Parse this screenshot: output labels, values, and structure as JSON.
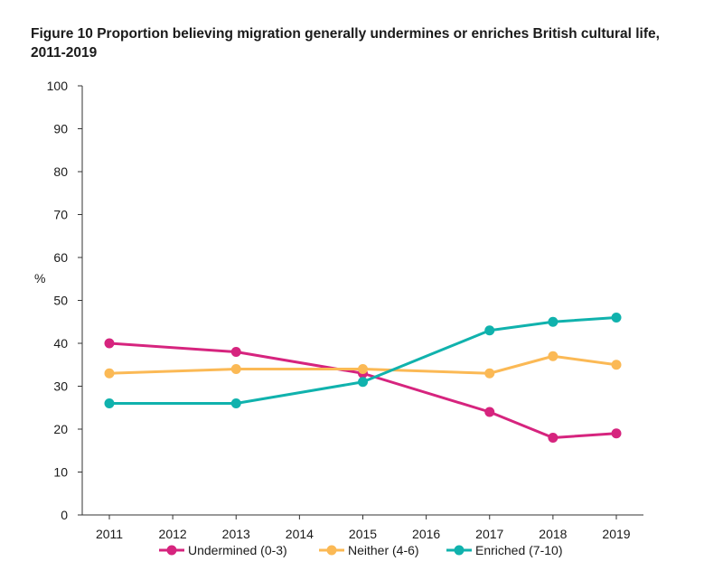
{
  "title": "Figure 10 Proportion believing migration generally undermines or enriches British cultural life, 2011-2019",
  "chart_data": {
    "type": "line",
    "title": "Figure 10 Proportion believing migration generally undermines or enriches British cultural life, 2011-2019",
    "xlabel": "",
    "ylabel": "%",
    "x": [
      2011,
      2012,
      2013,
      2014,
      2015,
      2016,
      2017,
      2018,
      2019
    ],
    "ylim": [
      0,
      100
    ],
    "yticks": [
      0,
      10,
      20,
      30,
      40,
      50,
      60,
      70,
      80,
      90,
      100
    ],
    "grid": false,
    "legend_position": "bottom",
    "series": [
      {
        "name": "Undermined (0-3)",
        "color": "#d6247e",
        "points": [
          [
            2011,
            40
          ],
          [
            2013,
            38
          ],
          [
            2015,
            33
          ],
          [
            2017,
            24
          ],
          [
            2018,
            18
          ],
          [
            2019,
            19
          ]
        ]
      },
      {
        "name": "Neither (4-6)",
        "color": "#fbb955",
        "points": [
          [
            2011,
            33
          ],
          [
            2013,
            34
          ],
          [
            2015,
            34
          ],
          [
            2017,
            33
          ],
          [
            2018,
            37
          ],
          [
            2019,
            35
          ]
        ]
      },
      {
        "name": "Enriched (7-10)",
        "color": "#10b2ad",
        "points": [
          [
            2011,
            26
          ],
          [
            2013,
            26
          ],
          [
            2015,
            31
          ],
          [
            2017,
            43
          ],
          [
            2018,
            45
          ],
          [
            2019,
            46
          ]
        ]
      }
    ]
  }
}
